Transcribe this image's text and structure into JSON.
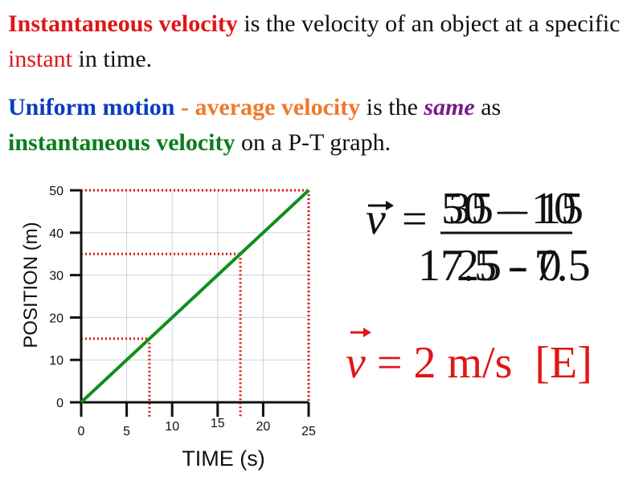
{
  "text": {
    "p1": {
      "t1": "Instantaneous velocity",
      "t2": " is the velocity of an object at a specific ",
      "t3": "instant",
      "t4": " in time."
    },
    "p2": {
      "t1": "Uniform motion",
      "t2": " - ",
      "t3": "average velocity",
      "t4": " is the ",
      "t5": "same",
      "t6": " as ",
      "t7": "instantaneous velocity",
      "t8": " on a P-T graph."
    }
  },
  "equation1": {
    "v": "v",
    "equals": "=",
    "num_a": "50",
    "num_b": "35",
    "num_minus_a": "–",
    "num_minus_b": "–",
    "num_c": "10",
    "num_d": "15",
    "den_a": "25",
    "den_b": "17.5",
    "den_minus_a": "-",
    "den_minus_b": "-",
    "den_c": "0",
    "den_d": "7.5"
  },
  "equation2": {
    "v": "v",
    "equals": "=",
    "value": "2 m/s",
    "direction": "[E]"
  },
  "chart_data": {
    "type": "line",
    "xlabel": "TIME (s)",
    "ylabel": "POSITION (m)",
    "xlim": [
      0,
      25
    ],
    "ylim": [
      0,
      50
    ],
    "x_ticks": [
      "0",
      "5",
      "10",
      "15",
      "20",
      "25"
    ],
    "y_ticks": [
      "0",
      "10",
      "20",
      "30",
      "40",
      "50"
    ],
    "grid": true,
    "series": [
      {
        "x": [
          0,
          25
        ],
        "y": [
          0,
          50
        ],
        "color": "#0f8f1a"
      }
    ],
    "guide_points": [
      {
        "x": 7.5,
        "y": 15
      },
      {
        "x": 17.5,
        "y": 35
      },
      {
        "x": 25,
        "y": 50
      }
    ],
    "guide_color": "#e01616"
  }
}
